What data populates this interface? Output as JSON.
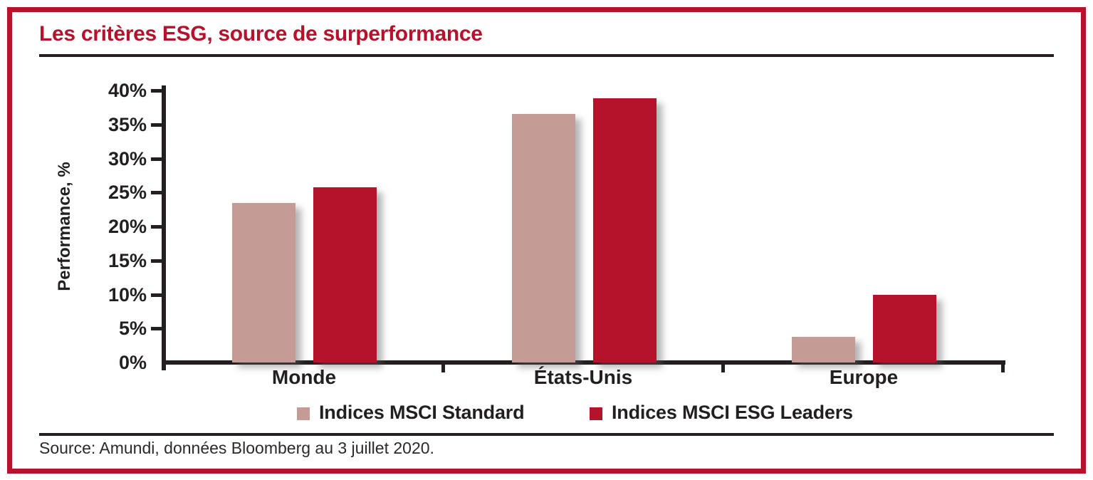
{
  "title": "Les critères ESG, source de surperformance",
  "source_note": "Source: Amundi, données Bloomberg au 3 juillet 2020.",
  "colors": {
    "accent_red": "#b5122b",
    "bar_standard": "#c59b95",
    "bar_esg_leaders": "#b5122b",
    "axis_black": "#231f20"
  },
  "chart_data": {
    "type": "bar",
    "title": "Les critères ESG, source de surperformance",
    "categories": [
      "Monde",
      "États-Unis",
      "Europe"
    ],
    "series": [
      {
        "name": "Indices MSCI Standard",
        "color": "#c59b95",
        "values": [
          23.5,
          36.5,
          3.8
        ]
      },
      {
        "name": "Indices MSCI ESG Leaders",
        "color": "#b5122b",
        "values": [
          25.8,
          38.8,
          10.0
        ]
      }
    ],
    "xlabel": "",
    "ylabel": "Performance, %",
    "ylim": [
      0,
      40
    ],
    "ytick_step": 5,
    "ytick_labels": [
      "0%",
      "5%",
      "10%",
      "15%",
      "20%",
      "25%",
      "30%",
      "35%",
      "40%"
    ],
    "grid": false,
    "legend_position": "bottom"
  }
}
